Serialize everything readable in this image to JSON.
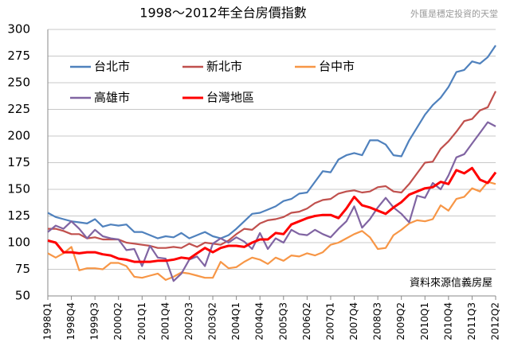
{
  "chart_data": {
    "type": "line",
    "title": "1998～2012年全台房價指數",
    "watermark": "外匯是穩定投資的天堂",
    "source": "資料來源信義房屋",
    "categories": [
      "1998Q1",
      null,
      null,
      "1998Q4",
      null,
      null,
      "1999Q3",
      null,
      null,
      "2000Q2",
      null,
      null,
      "2001Q1",
      null,
      null,
      "2001Q4",
      null,
      null,
      "2002Q3",
      null,
      null,
      "2003Q2",
      null,
      null,
      "2004Q1",
      null,
      null,
      "2004Q4",
      null,
      null,
      "2005Q3",
      null,
      null,
      "2006Q2",
      null,
      null,
      "2007Q1",
      null,
      null,
      "2007Q4",
      null,
      null,
      "2008Q3",
      null,
      null,
      "2009Q2",
      null,
      null,
      "2010Q1",
      null,
      null,
      "2010Q4",
      null,
      null,
      "2011Q3",
      null,
      null,
      "2012Q2"
    ],
    "series": [
      {
        "name": "台北市",
        "color": "#4f81bd",
        "values": [
          128,
          124,
          122,
          120,
          119,
          118,
          122,
          115,
          117,
          116,
          117,
          110,
          110,
          107,
          104,
          106,
          105,
          109,
          104,
          107,
          110,
          106,
          104,
          107,
          113,
          120,
          127,
          128,
          131,
          134,
          139,
          141,
          146,
          147,
          157,
          167,
          166,
          178,
          182,
          184,
          182,
          196,
          196,
          192,
          182,
          181,
          196,
          208,
          220,
          229,
          236,
          246,
          260,
          262,
          270,
          268,
          274,
          285
        ]
      },
      {
        "name": "新北市",
        "color": "#c0504d",
        "values": [
          113,
          113,
          111,
          108,
          108,
          104,
          105,
          103,
          103,
          103,
          100,
          99,
          98,
          97,
          95,
          95,
          96,
          95,
          99,
          96,
          100,
          99,
          98,
          102,
          108,
          113,
          112,
          118,
          121,
          122,
          124,
          128,
          129,
          132,
          137,
          140,
          141,
          146,
          148,
          149,
          147,
          148,
          152,
          153,
          148,
          147,
          155,
          165,
          175,
          176,
          188,
          195,
          204,
          214,
          216,
          224,
          227,
          242
        ]
      },
      {
        "name": "台中市",
        "color": "#f79646",
        "values": [
          90,
          86,
          90,
          96,
          74,
          76,
          76,
          75,
          81,
          81,
          78,
          68,
          67,
          69,
          71,
          65,
          68,
          72,
          71,
          69,
          67,
          67,
          82,
          76,
          77,
          82,
          86,
          84,
          80,
          86,
          83,
          88,
          87,
          90,
          88,
          91,
          98,
          100,
          104,
          108,
          111,
          105,
          94,
          95,
          107,
          112,
          118,
          121,
          120,
          122,
          135,
          130,
          141,
          143,
          151,
          148,
          157,
          155
        ]
      },
      {
        "name": "高雄市",
        "color": "#8064a2",
        "values": [
          110,
          116,
          113,
          120,
          113,
          104,
          112,
          106,
          104,
          103,
          93,
          94,
          78,
          97,
          86,
          85,
          64,
          71,
          84,
          87,
          78,
          99,
          104,
          100,
          105,
          101,
          94,
          109,
          94,
          104,
          100,
          112,
          108,
          107,
          112,
          108,
          105,
          113,
          120,
          134,
          114,
          122,
          133,
          142,
          133,
          127,
          119,
          144,
          142,
          156,
          150,
          163,
          180,
          183,
          193,
          203,
          213,
          209
        ]
      },
      {
        "name": "台灣地區",
        "color": "#ff0000",
        "values": [
          102,
          100,
          91,
          91,
          90,
          91,
          91,
          89,
          88,
          85,
          84,
          82,
          82,
          82,
          83,
          83,
          84,
          86,
          85,
          90,
          95,
          91,
          95,
          97,
          97,
          96,
          100,
          103,
          103,
          109,
          108,
          117,
          120,
          123,
          125,
          126,
          126,
          123,
          132,
          143,
          135,
          133,
          130,
          127,
          133,
          138,
          145,
          148,
          151,
          152,
          157,
          155,
          168,
          165,
          170,
          159,
          156,
          166
        ]
      }
    ],
    "ylim": [
      50,
      300
    ],
    "yticks": [
      50,
      75,
      100,
      125,
      150,
      175,
      200,
      225,
      250,
      275,
      300
    ],
    "grid": true
  }
}
